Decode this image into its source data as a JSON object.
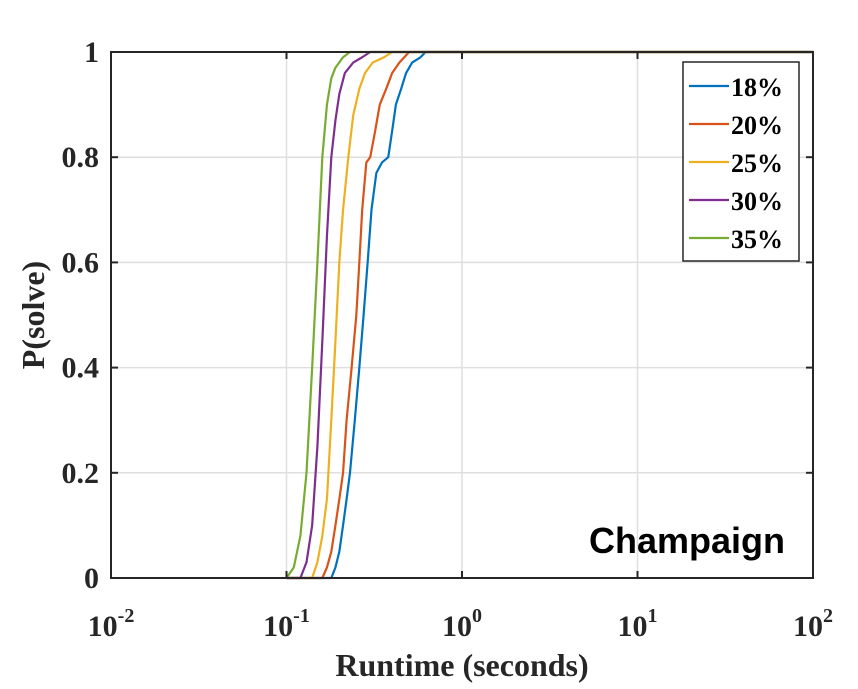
{
  "chart_data": {
    "type": "line",
    "xscale": "log",
    "xlim": [
      0.01,
      100
    ],
    "ylim": [
      0,
      1
    ],
    "xlabel": "Runtime (seconds)",
    "ylabel": "P(solve)",
    "x_ticks": [
      0.01,
      0.1,
      1,
      10,
      100
    ],
    "x_tick_labels": [
      {
        "base": "10",
        "exp": "-2"
      },
      {
        "base": "10",
        "exp": "-1"
      },
      {
        "base": "10",
        "exp": "0"
      },
      {
        "base": "10",
        "exp": "1"
      },
      {
        "base": "10",
        "exp": "2"
      }
    ],
    "y_ticks": [
      0,
      0.2,
      0.4,
      0.6,
      0.8,
      1
    ],
    "y_tick_labels": [
      "0",
      "0.2",
      "0.4",
      "0.6",
      "0.8",
      "1"
    ],
    "grid": true,
    "legend_position": "top-right",
    "annotation": "Champaign",
    "series": [
      {
        "name": "18%",
        "color": "#0072BD",
        "points": [
          [
            0.1,
            0
          ],
          [
            0.18,
            0
          ],
          [
            0.19,
            0.02
          ],
          [
            0.2,
            0.05
          ],
          [
            0.21,
            0.1
          ],
          [
            0.22,
            0.15
          ],
          [
            0.23,
            0.2
          ],
          [
            0.245,
            0.3
          ],
          [
            0.26,
            0.4
          ],
          [
            0.275,
            0.5
          ],
          [
            0.29,
            0.6
          ],
          [
            0.305,
            0.7
          ],
          [
            0.325,
            0.77
          ],
          [
            0.35,
            0.79
          ],
          [
            0.38,
            0.8
          ],
          [
            0.4,
            0.85
          ],
          [
            0.42,
            0.9
          ],
          [
            0.45,
            0.93
          ],
          [
            0.48,
            0.96
          ],
          [
            0.52,
            0.98
          ],
          [
            0.58,
            0.99
          ],
          [
            0.62,
            1
          ],
          [
            100,
            1
          ]
        ]
      },
      {
        "name": "20%",
        "color": "#D95319",
        "points": [
          [
            0.1,
            0
          ],
          [
            0.16,
            0
          ],
          [
            0.17,
            0.02
          ],
          [
            0.18,
            0.05
          ],
          [
            0.19,
            0.1
          ],
          [
            0.2,
            0.15
          ],
          [
            0.21,
            0.2
          ],
          [
            0.22,
            0.3
          ],
          [
            0.235,
            0.4
          ],
          [
            0.25,
            0.5
          ],
          [
            0.26,
            0.6
          ],
          [
            0.27,
            0.7
          ],
          [
            0.285,
            0.79
          ],
          [
            0.3,
            0.8
          ],
          [
            0.32,
            0.85
          ],
          [
            0.34,
            0.9
          ],
          [
            0.37,
            0.93
          ],
          [
            0.4,
            0.96
          ],
          [
            0.44,
            0.98
          ],
          [
            0.5,
            1
          ],
          [
            100,
            1
          ]
        ]
      },
      {
        "name": "25%",
        "color": "#EDB120",
        "points": [
          [
            0.1,
            0
          ],
          [
            0.14,
            0
          ],
          [
            0.15,
            0.03
          ],
          [
            0.16,
            0.08
          ],
          [
            0.17,
            0.15
          ],
          [
            0.18,
            0.3
          ],
          [
            0.19,
            0.45
          ],
          [
            0.2,
            0.6
          ],
          [
            0.21,
            0.7
          ],
          [
            0.225,
            0.8
          ],
          [
            0.24,
            0.88
          ],
          [
            0.26,
            0.93
          ],
          [
            0.28,
            0.96
          ],
          [
            0.31,
            0.98
          ],
          [
            0.36,
            0.99
          ],
          [
            0.4,
            1
          ],
          [
            100,
            1
          ]
        ]
      },
      {
        "name": "30%",
        "color": "#7E2F8E",
        "points": [
          [
            0.1,
            0
          ],
          [
            0.12,
            0
          ],
          [
            0.13,
            0.03
          ],
          [
            0.14,
            0.1
          ],
          [
            0.15,
            0.25
          ],
          [
            0.16,
            0.45
          ],
          [
            0.17,
            0.65
          ],
          [
            0.18,
            0.8
          ],
          [
            0.19,
            0.87
          ],
          [
            0.2,
            0.92
          ],
          [
            0.215,
            0.96
          ],
          [
            0.24,
            0.98
          ],
          [
            0.27,
            0.99
          ],
          [
            0.3,
            1
          ],
          [
            100,
            1
          ]
        ]
      },
      {
        "name": "35%",
        "color": "#77AC30",
        "points": [
          [
            0.1,
            0
          ],
          [
            0.11,
            0.02
          ],
          [
            0.12,
            0.08
          ],
          [
            0.13,
            0.2
          ],
          [
            0.14,
            0.4
          ],
          [
            0.15,
            0.6
          ],
          [
            0.16,
            0.8
          ],
          [
            0.17,
            0.9
          ],
          [
            0.18,
            0.95
          ],
          [
            0.19,
            0.97
          ],
          [
            0.21,
            0.99
          ],
          [
            0.23,
            1
          ],
          [
            100,
            1
          ]
        ]
      }
    ]
  }
}
